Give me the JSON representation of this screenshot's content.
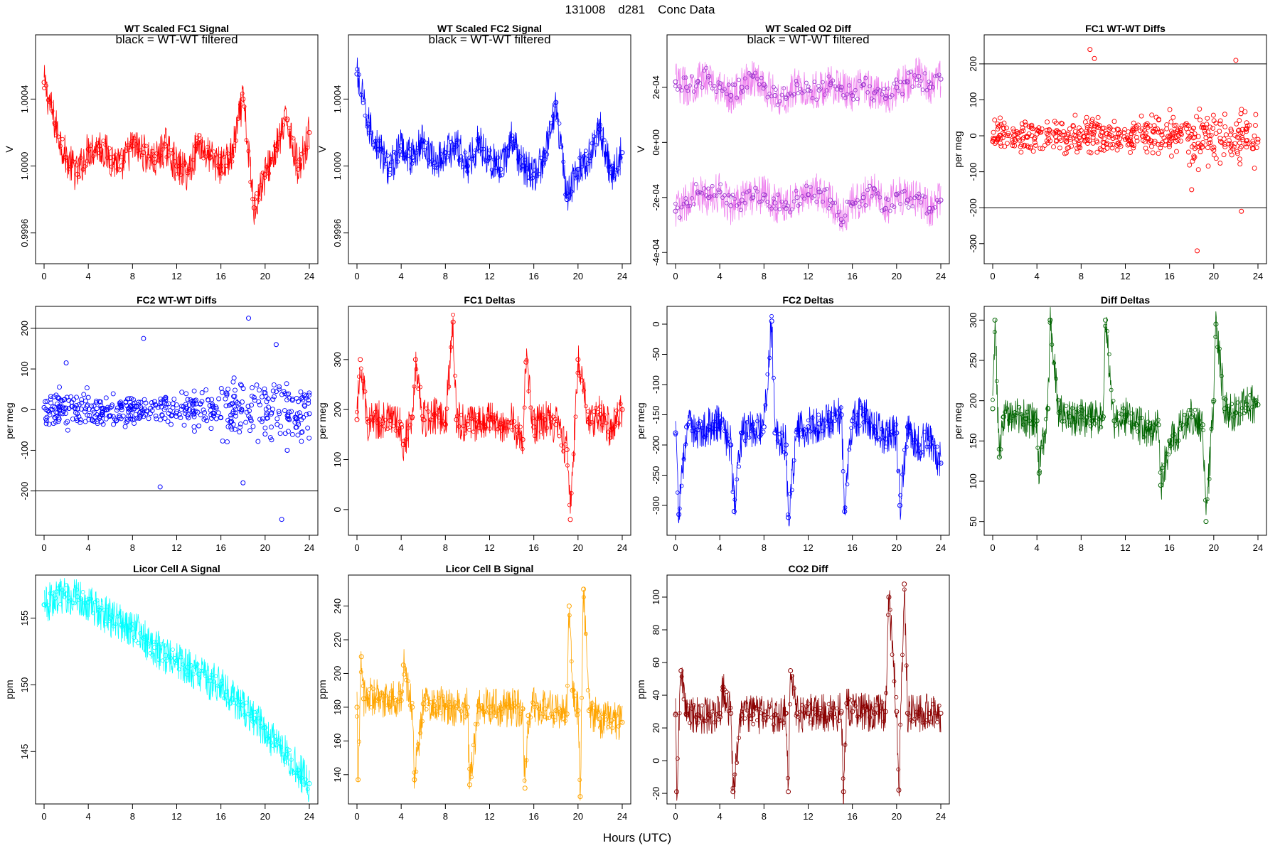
{
  "figure": {
    "title_parts": [
      "131008",
      "d281",
      "Conc Data"
    ],
    "xlabel": "Hours (UTC)"
  },
  "chart_data": [
    {
      "id": "wt-fc1",
      "type": "line",
      "title": "WT Scaled FC1 Signal",
      "ylabel": "V",
      "annotation": "black = WT-WT filtered",
      "color": "#ff0000",
      "xlim": [
        0,
        24
      ],
      "ylim": [
        0.99945,
        1.00075
      ],
      "xticks": [
        0,
        4,
        8,
        12,
        16,
        20,
        24
      ],
      "yticks": [
        0.9996,
        1.0,
        1.0004
      ],
      "ytick_labels": [
        "0.9996",
        "1.0000",
        "1.0004"
      ],
      "series": [
        {
          "name": "signal",
          "x": [
            0,
            1,
            2,
            3,
            4,
            5,
            6,
            7,
            8,
            9,
            10,
            11,
            12,
            13,
            14,
            15,
            16,
            17,
            18,
            19,
            20,
            21,
            22,
            23,
            24
          ],
          "y": [
            1.0005,
            1.00025,
            1.00005,
            0.99995,
            1.0001,
            1.00012,
            1.00005,
            1.0,
            1.00012,
            1.00008,
            1.00002,
            1.00012,
            1.0,
            0.99996,
            1.00014,
            1.00005,
            1.0,
            1.00006,
            1.0004,
            0.99975,
            0.99995,
            1.0001,
            1.00028,
            0.99998,
            1.0002
          ]
        }
      ]
    },
    {
      "id": "wt-fc2",
      "type": "line",
      "title": "WT Scaled FC2 Signal",
      "ylabel": "V",
      "annotation": "black = WT-WT filtered",
      "color": "#0000ff",
      "xlim": [
        0,
        24
      ],
      "ylim": [
        0.99945,
        1.00075
      ],
      "xticks": [
        0,
        4,
        8,
        12,
        16,
        20,
        24
      ],
      "yticks": [
        0.9996,
        1.0,
        1.0004
      ],
      "ytick_labels": [
        "0.9996",
        "1.0000",
        "1.0004"
      ],
      "series": [
        {
          "name": "signal",
          "x": [
            0,
            1,
            2,
            3,
            4,
            5,
            6,
            7,
            8,
            9,
            10,
            11,
            12,
            13,
            14,
            15,
            16,
            17,
            18,
            19,
            20,
            21,
            22,
            23,
            24
          ],
          "y": [
            1.00055,
            1.00025,
            1.0001,
            0.99998,
            1.00012,
            1.00005,
            1.00015,
            1.00002,
            1.00008,
            1.00012,
            1.0,
            1.00015,
            1.00005,
            0.99998,
            1.00016,
            1.0,
            0.99995,
            1.00004,
            1.00038,
            0.9998,
            0.99998,
            1.00006,
            1.00022,
            0.99996,
            1.00008
          ]
        }
      ]
    },
    {
      "id": "wt-o2diff",
      "type": "line",
      "title": "WT Scaled O2 Diff",
      "ylabel": "V",
      "annotation": "black = WT-WT filtered",
      "color": "#ee82ee",
      "point_color": "#9933cc",
      "xlim": [
        0,
        24
      ],
      "ylim": [
        -0.00042,
        0.00037
      ],
      "xticks": [
        0,
        4,
        8,
        12,
        16,
        20,
        24
      ],
      "yticks": [
        -0.0004,
        -0.0002,
        0,
        0.0002
      ],
      "ytick_labels": [
        "-4e-04",
        "-2e-04",
        "0e+00",
        "2e-04"
      ],
      "series": [
        {
          "name": "upper",
          "x": [
            0,
            1,
            2,
            3,
            4,
            5,
            6,
            7,
            8,
            9,
            10,
            11,
            12,
            13,
            14,
            15,
            16,
            17,
            18,
            19,
            20,
            21,
            22,
            23,
            24
          ],
          "y": [
            0.00022,
            0.0002,
            0.00022,
            0.00024,
            0.0002,
            0.00017,
            0.0002,
            0.00024,
            0.00021,
            0.00017,
            0.00016,
            0.00021,
            0.00019,
            0.00019,
            0.00021,
            0.0002,
            0.00017,
            0.00021,
            0.00018,
            0.00016,
            0.0002,
            0.00022,
            0.00024,
            0.0002,
            0.00023
          ]
        },
        {
          "name": "lower",
          "x": [
            0,
            1,
            2,
            3,
            4,
            5,
            6,
            7,
            8,
            9,
            10,
            11,
            12,
            13,
            14,
            15,
            16,
            17,
            18,
            19,
            20,
            21,
            22,
            23,
            24
          ],
          "y": [
            -0.00025,
            -0.00022,
            -0.00018,
            -0.0002,
            -0.00018,
            -0.00023,
            -0.00021,
            -0.0002,
            -0.00019,
            -0.00022,
            -0.00024,
            -0.0002,
            -0.00019,
            -0.00018,
            -0.00021,
            -0.00028,
            -0.00022,
            -0.0002,
            -0.00017,
            -0.00024,
            -0.00019,
            -0.00021,
            -0.0002,
            -0.00024,
            -0.00021
          ]
        }
      ]
    },
    {
      "id": "fc1-wtwt",
      "type": "scatter",
      "title": "FC1 WT-WT Diffs",
      "ylabel": "per meg",
      "color": "#ff0000",
      "xlim": [
        0,
        24
      ],
      "ylim": [
        -340,
        265
      ],
      "xticks": [
        0,
        4,
        8,
        12,
        16,
        20,
        24
      ],
      "yticks": [
        -300,
        -200,
        -100,
        0,
        100,
        200
      ],
      "ytick_labels": [
        "-300",
        "-200",
        "-100",
        "0",
        "100",
        "200"
      ],
      "hlines": [
        200,
        -200
      ],
      "series": [
        {
          "name": "diffs",
          "x": [
            0,
            1,
            2,
            3,
            4,
            5,
            6,
            7,
            8,
            8.8,
            9.2,
            10,
            11,
            12,
            13,
            14,
            15,
            16,
            17,
            18,
            18.5,
            19,
            20,
            21,
            22,
            22.5,
            23,
            24
          ],
          "y": [
            -15,
            20,
            -10,
            30,
            5,
            -20,
            10,
            -5,
            15,
            240,
            215,
            -30,
            40,
            -10,
            25,
            -5,
            10,
            -20,
            15,
            -150,
            -320,
            30,
            -40,
            60,
            210,
            -210,
            20,
            -10
          ]
        }
      ]
    },
    {
      "id": "fc2-wtwt",
      "type": "scatter",
      "title": "FC2 WT-WT Diffs",
      "ylabel": "per meg",
      "color": "#0000ff",
      "xlim": [
        0,
        24
      ],
      "ylim": [
        -295,
        240
      ],
      "xticks": [
        0,
        4,
        8,
        12,
        16,
        20,
        24
      ],
      "yticks": [
        -200,
        -100,
        0,
        100,
        200
      ],
      "ytick_labels": [
        "-200",
        "-100",
        "0",
        "100",
        "200"
      ],
      "hlines": [
        200,
        -200
      ],
      "series": [
        {
          "name": "diffs",
          "x": [
            0,
            1,
            2,
            3,
            4,
            5,
            6,
            7,
            8,
            9,
            10,
            10.5,
            11,
            12,
            13,
            14,
            15,
            16,
            17,
            18,
            18.5,
            19,
            20,
            21,
            21.5,
            22,
            23,
            24
          ],
          "y": [
            5,
            -20,
            115,
            -10,
            30,
            20,
            -15,
            10,
            -25,
            175,
            20,
            -190,
            30,
            -5,
            25,
            -40,
            10,
            -20,
            15,
            -180,
            225,
            30,
            -60,
            160,
            -270,
            -100,
            20,
            -10
          ]
        }
      ]
    },
    {
      "id": "fc1-deltas",
      "type": "line",
      "title": "FC1 Deltas",
      "ylabel": "per meg",
      "color": "#ff0000",
      "xlim": [
        0,
        24
      ],
      "ylim": [
        -40,
        395
      ],
      "xticks": [
        0,
        4,
        8,
        12,
        16,
        20,
        24
      ],
      "yticks": [
        0,
        100,
        200,
        300
      ],
      "ytick_labels": [
        "0",
        "100",
        "200",
        "300"
      ],
      "series": [
        {
          "name": "deltas",
          "x": [
            0,
            0.3,
            1,
            2,
            3,
            4,
            4.2,
            5,
            5.3,
            6,
            7,
            8,
            8.7,
            9,
            10,
            11,
            12,
            13,
            14,
            15,
            15.3,
            16,
            17,
            18,
            19,
            19.3,
            20,
            21,
            22,
            23,
            24
          ],
          "y": [
            180,
            300,
            175,
            180,
            178,
            170,
            130,
            185,
            300,
            180,
            190,
            170,
            375,
            180,
            170,
            175,
            180,
            172,
            175,
            140,
            295,
            165,
            180,
            170,
            120,
            -20,
            300,
            175,
            190,
            160,
            200
          ]
        }
      ]
    },
    {
      "id": "fc2-deltas",
      "type": "line",
      "title": "FC2 Deltas",
      "ylabel": "per meg",
      "color": "#0000ff",
      "xlim": [
        0,
        24
      ],
      "ylim": [
        -340,
        20
      ],
      "xticks": [
        0,
        4,
        8,
        12,
        16,
        20,
        24
      ],
      "yticks": [
        -300,
        -250,
        -200,
        -150,
        -100,
        -50,
        0
      ],
      "ytick_labels": [
        "-300",
        "-250",
        "-200",
        "-150",
        "-100",
        "-50",
        "0"
      ],
      "series": [
        {
          "name": "deltas",
          "x": [
            0,
            0.3,
            1,
            2,
            3,
            4,
            5,
            5.3,
            6,
            7,
            8,
            8.7,
            9,
            10,
            10.2,
            11,
            12,
            13,
            14,
            15,
            15.3,
            16,
            17,
            18,
            19,
            20,
            20.3,
            21,
            22,
            23,
            24
          ],
          "y": [
            -180,
            -315,
            -170,
            -175,
            -170,
            -165,
            -200,
            -310,
            -180,
            -175,
            -170,
            5,
            -180,
            -200,
            -320,
            -175,
            -170,
            -165,
            -160,
            -150,
            -310,
            -160,
            -150,
            -170,
            -190,
            -180,
            -300,
            -170,
            -200,
            -190,
            -230
          ]
        }
      ]
    },
    {
      "id": "diff-deltas",
      "type": "line",
      "title": "Diff Deltas",
      "ylabel": "per meg",
      "color": "#006400",
      "xlim": [
        0,
        24
      ],
      "ylim": [
        40,
        310
      ],
      "xticks": [
        0,
        4,
        8,
        12,
        16,
        20,
        24
      ],
      "yticks": [
        50,
        100,
        150,
        200,
        250,
        300
      ],
      "ytick_labels": [
        "50",
        "100",
        "150",
        "200",
        "250",
        "300"
      ],
      "series": [
        {
          "name": "deltas",
          "x": [
            0,
            0.2,
            0.6,
            1,
            2,
            3,
            4,
            4.2,
            5,
            5.2,
            6,
            7,
            8,
            9,
            10,
            10.2,
            11,
            12,
            13,
            14,
            15,
            15.2,
            16,
            17,
            18,
            19,
            19.3,
            20,
            20.2,
            21,
            22,
            23,
            24
          ],
          "y": [
            190,
            300,
            130,
            180,
            185,
            178,
            175,
            110,
            190,
            300,
            185,
            180,
            180,
            175,
            180,
            300,
            175,
            180,
            170,
            165,
            170,
            95,
            150,
            165,
            180,
            170,
            50,
            200,
            295,
            190,
            185,
            195,
            195
          ]
        }
      ]
    },
    {
      "id": "licor-a",
      "type": "line",
      "title": "Licor Cell A Signal",
      "ylabel": "ppm",
      "color": "#00ffff",
      "xlim": [
        0,
        24
      ],
      "ylim": [
        141.5,
        157.8
      ],
      "xticks": [
        0,
        4,
        8,
        12,
        16,
        20,
        24
      ],
      "yticks": [
        145,
        150,
        155
      ],
      "ytick_labels": [
        "145",
        "150",
        "155"
      ],
      "series": [
        {
          "name": "signal",
          "x": [
            0,
            1,
            2,
            3,
            4,
            5,
            6,
            7,
            8,
            9,
            10,
            11,
            12,
            13,
            14,
            15,
            16,
            17,
            18,
            19,
            20,
            21,
            22,
            23,
            24
          ],
          "y": [
            156,
            156.5,
            156.8,
            156.6,
            156.2,
            155.6,
            155,
            154.5,
            154.2,
            153.5,
            152.8,
            152.2,
            151.8,
            151.3,
            150.8,
            150.3,
            150,
            149,
            148.5,
            147.5,
            146.8,
            145.5,
            144.8,
            143.6,
            142.6
          ]
        }
      ]
    },
    {
      "id": "licor-b",
      "type": "line",
      "title": "Licor Cell B Signal",
      "ylabel": "ppm",
      "color": "#ffa500",
      "xlim": [
        0,
        24
      ],
      "ylim": [
        126,
        255
      ],
      "xticks": [
        0,
        4,
        8,
        12,
        16,
        20,
        24
      ],
      "yticks": [
        140,
        160,
        180,
        200,
        220,
        240
      ],
      "ytick_labels": [
        "140",
        "160",
        "180",
        "200",
        "220",
        "240"
      ],
      "series": [
        {
          "name": "signal",
          "x": [
            0,
            0.1,
            0.4,
            0.6,
            1,
            2,
            3,
            4,
            4.2,
            5,
            5.2,
            6,
            7,
            8,
            9,
            10,
            10.2,
            11,
            12,
            13,
            14,
            15,
            15.2,
            15.5,
            16,
            17,
            18,
            19,
            19.2,
            19.5,
            20,
            20.2,
            20.5,
            21,
            22,
            23,
            24
          ],
          "y": [
            180,
            137,
            210,
            185,
            186,
            185,
            185,
            184,
            205,
            180,
            137,
            182,
            181,
            181,
            180,
            180,
            134,
            181,
            180,
            179,
            180,
            179,
            132,
            175,
            182,
            179,
            178,
            176,
            240,
            190,
            178,
            127,
            250,
            178,
            173,
            172,
            171
          ]
        }
      ]
    },
    {
      "id": "co2-diff",
      "type": "line",
      "title": "CO2 Diff",
      "ylabel": "ppm",
      "color": "#8b0000",
      "xlim": [
        0,
        24
      ],
      "ylim": [
        -23,
        110
      ],
      "xticks": [
        0,
        4,
        8,
        12,
        16,
        20,
        24
      ],
      "yticks": [
        -20,
        0,
        20,
        40,
        60,
        80,
        100
      ],
      "ytick_labels": [
        "-20",
        "0",
        "20",
        "40",
        "60",
        "80",
        "100"
      ],
      "series": [
        {
          "name": "diff",
          "x": [
            0,
            0.1,
            0.5,
            1,
            2,
            3,
            4,
            4.3,
            5,
            5.2,
            6,
            7,
            8,
            9,
            10,
            10.2,
            10.4,
            11,
            12,
            13,
            14,
            15,
            15.2,
            15.5,
            16,
            17,
            18,
            19,
            19.3,
            20,
            20.2,
            20.7,
            21,
            22,
            23,
            24
          ],
          "y": [
            28,
            -19,
            55,
            28,
            28,
            28,
            29,
            45,
            29,
            -19,
            28,
            28,
            28,
            28,
            29,
            -19,
            55,
            29,
            29,
            29,
            29,
            30,
            -19,
            35,
            30,
            30,
            29,
            30,
            100,
            30,
            -18,
            108,
            29,
            29,
            29,
            29
          ]
        }
      ]
    }
  ]
}
